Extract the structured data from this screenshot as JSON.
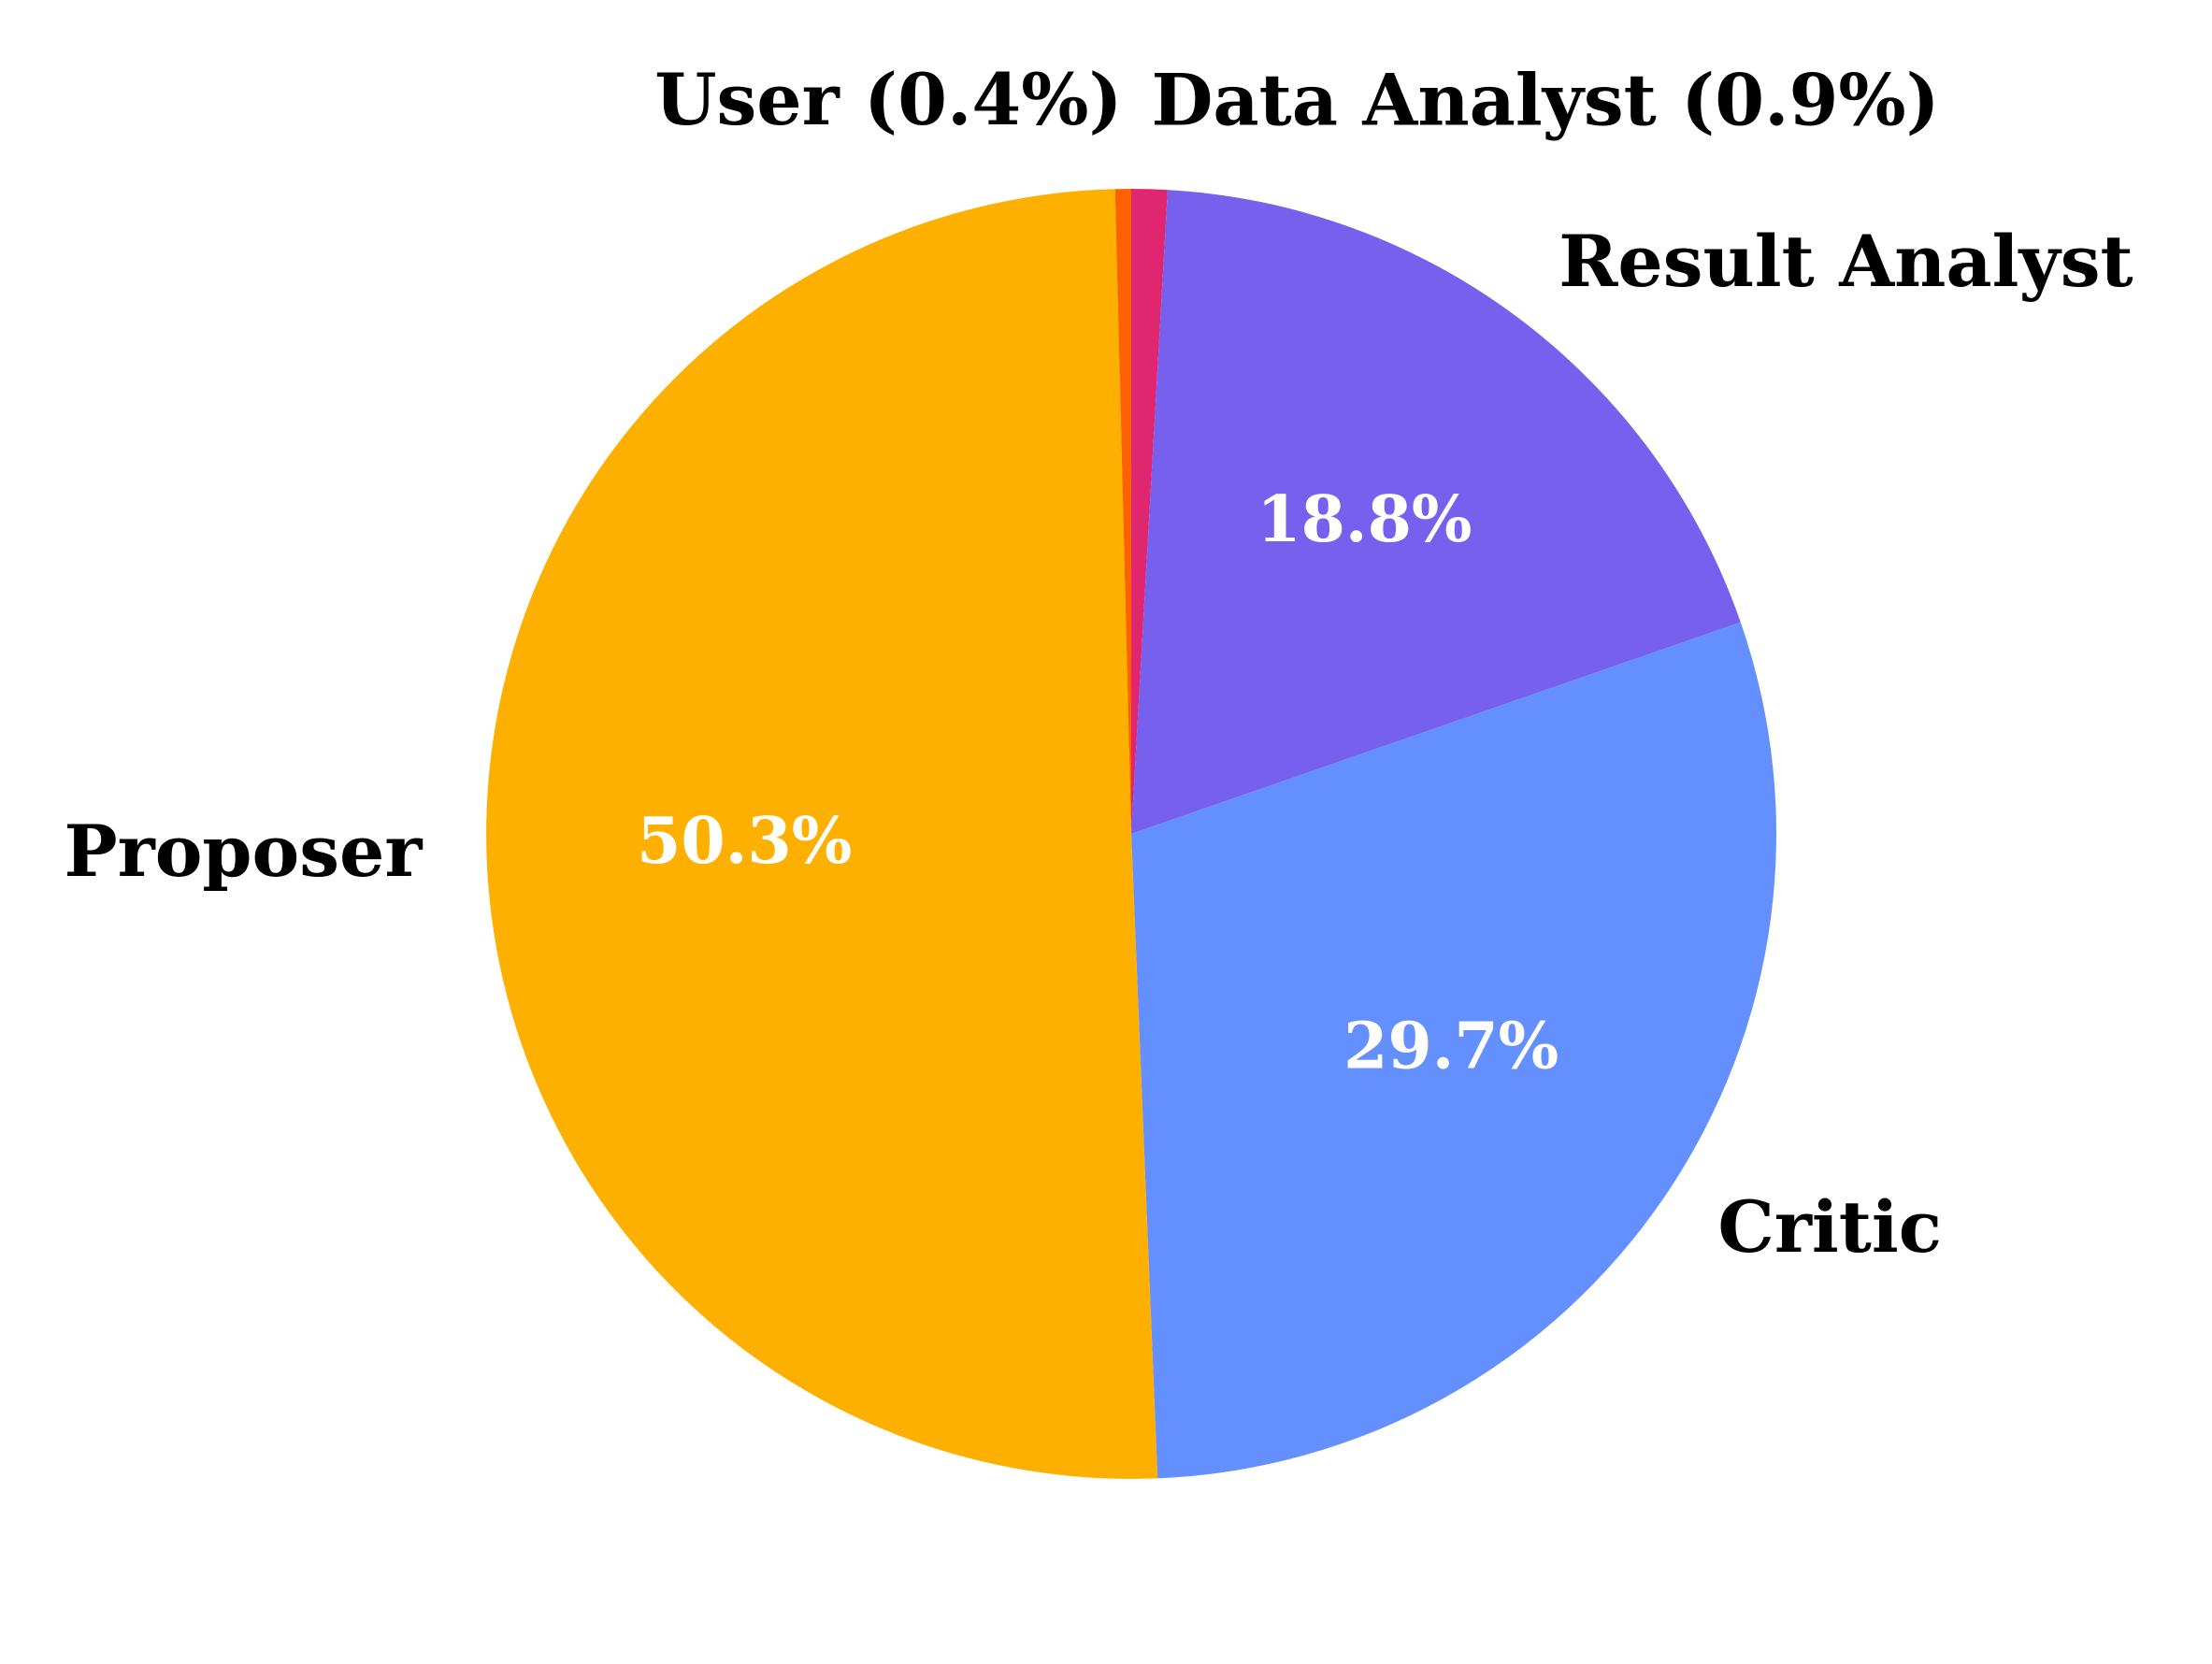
{
  "chart_data": {
    "type": "pie",
    "start_angle_deg": 90,
    "direction": "clockwise",
    "slices": [
      {
        "label": "Data Analyst (0.9%)",
        "value": 0.9,
        "color": "#e0266f",
        "pct_label": ""
      },
      {
        "label": "Result Analyst",
        "value": 18.8,
        "color": "#7860ee",
        "pct_label": "18.8%"
      },
      {
        "label": "Critic",
        "value": 29.7,
        "color": "#648ffe",
        "pct_label": "29.7%"
      },
      {
        "label": "Proposer",
        "value": 50.3,
        "color": "#feb000",
        "pct_label": "50.3%"
      },
      {
        "label": "User (0.4%)",
        "value": 0.4,
        "color": "#fd6100",
        "pct_label": ""
      }
    ]
  }
}
